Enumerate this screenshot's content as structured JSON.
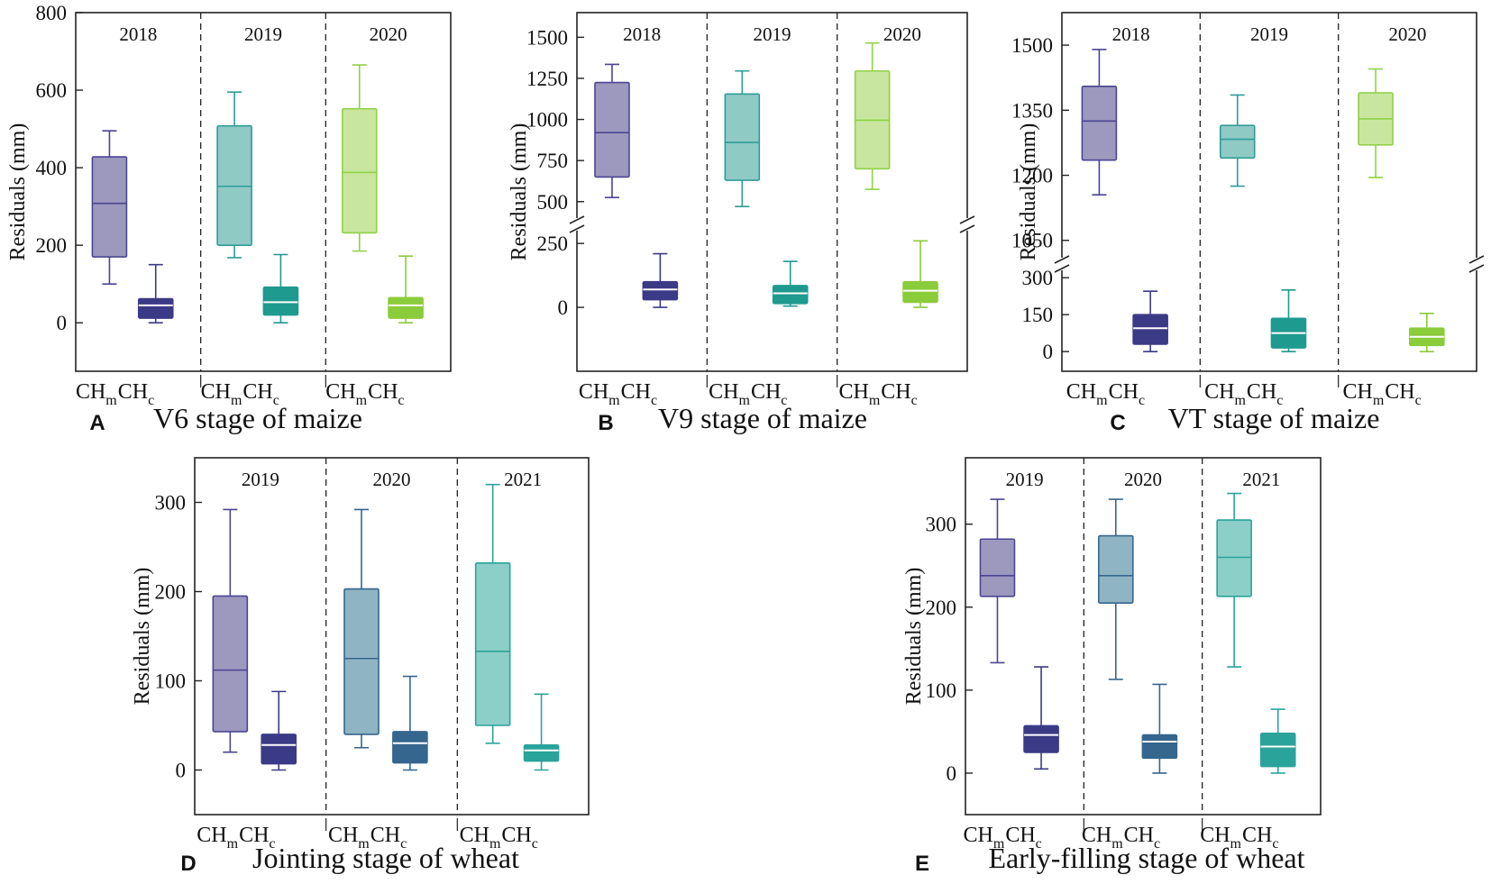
{
  "figure": {
    "ylabel": "Residuals (mm)",
    "label_m": "CH",
    "sub_m": "m",
    "label_c": "CH",
    "sub_c": "c"
  },
  "colors": {
    "purple": "#4a4593",
    "purple_fill": "#9c98be",
    "teal": "#2f9c97",
    "teal_fill": "#8fcac5",
    "green": "#8fd244",
    "green_fill": "#c8e6a0",
    "navy": "#3b3a86",
    "dteal": "#1e9a8f",
    "lgreen": "#8acc3a",
    "steel": "#35668d",
    "steel_fill": "#8fb4c3",
    "wteal": "#2aa39a",
    "wteal_fill": "#8ccfc8"
  },
  "chart_data": [
    {
      "type": "box",
      "panel": "A",
      "title": "V6 stage of maize",
      "ylabel": "Residuals (mm)",
      "ylim": [
        -125,
        800
      ],
      "yticks": [
        0,
        200,
        400,
        600,
        800
      ],
      "groups": [
        "2018",
        "2019",
        "2020"
      ],
      "boxes": [
        {
          "group": "2018",
          "series": "CHm",
          "min": 100,
          "q1": 170,
          "median": 308,
          "q3": 428,
          "max": 495,
          "color": "purple",
          "fill": "purple_fill"
        },
        {
          "group": "2018",
          "series": "CHc",
          "min": 0,
          "q1": 12,
          "median": 45,
          "q3": 62,
          "max": 150,
          "color": "navy",
          "fill": "navy"
        },
        {
          "group": "2019",
          "series": "CHm",
          "min": 168,
          "q1": 200,
          "median": 352,
          "q3": 508,
          "max": 595,
          "color": "teal",
          "fill": "teal_fill"
        },
        {
          "group": "2019",
          "series": "CHc",
          "min": 0,
          "q1": 20,
          "median": 53,
          "q3": 92,
          "max": 176,
          "color": "dteal",
          "fill": "dteal"
        },
        {
          "group": "2020",
          "series": "CHm",
          "min": 185,
          "q1": 232,
          "median": 388,
          "q3": 552,
          "max": 665,
          "color": "green",
          "fill": "green_fill"
        },
        {
          "group": "2020",
          "series": "CHc",
          "min": 0,
          "q1": 12,
          "median": 45,
          "q3": 65,
          "max": 172,
          "color": "lgreen",
          "fill": "lgreen"
        }
      ]
    },
    {
      "type": "box",
      "panel": "B",
      "title": "V9 stage of maize",
      "ylabel": "Residuals (mm)",
      "broken": true,
      "lower": {
        "range": [
          -250,
          300
        ],
        "ticks": [
          0,
          250
        ]
      },
      "upper": {
        "range": [
          400,
          1650
        ],
        "ticks": [
          500,
          750,
          1000,
          1250,
          1500
        ]
      },
      "groups": [
        "2018",
        "2019",
        "2020"
      ],
      "boxes": [
        {
          "group": "2018",
          "series": "CHm",
          "min": 525,
          "q1": 650,
          "median": 920,
          "q3": 1225,
          "max": 1335,
          "color": "purple",
          "fill": "purple_fill"
        },
        {
          "group": "2018",
          "series": "CHc",
          "min": 0,
          "q1": 30,
          "median": 70,
          "q3": 100,
          "max": 210,
          "color": "navy",
          "fill": "navy"
        },
        {
          "group": "2019",
          "series": "CHm",
          "min": 470,
          "q1": 630,
          "median": 860,
          "q3": 1155,
          "max": 1295,
          "color": "teal",
          "fill": "teal_fill"
        },
        {
          "group": "2019",
          "series": "CHc",
          "min": 5,
          "q1": 15,
          "median": 55,
          "q3": 85,
          "max": 180,
          "color": "dteal",
          "fill": "dteal"
        },
        {
          "group": "2020",
          "series": "CHm",
          "min": 575,
          "q1": 700,
          "median": 995,
          "q3": 1295,
          "max": 1465,
          "color": "green",
          "fill": "green_fill"
        },
        {
          "group": "2020",
          "series": "CHc",
          "min": 0,
          "q1": 20,
          "median": 65,
          "q3": 100,
          "max": 260,
          "color": "lgreen",
          "fill": "lgreen"
        }
      ]
    },
    {
      "type": "box",
      "panel": "C",
      "title": "VT stage of maize",
      "ylabel": "Residuals (mm)",
      "broken": true,
      "lower": {
        "range": [
          -80,
          330
        ],
        "ticks": [
          0,
          150,
          300
        ]
      },
      "upper": {
        "range": [
          1010,
          1575
        ],
        "ticks": [
          1050,
          1200,
          1350,
          1500
        ]
      },
      "groups": [
        "2018",
        "2019",
        "2020"
      ],
      "boxes": [
        {
          "group": "2018",
          "series": "CHm",
          "min": 1155,
          "q1": 1235,
          "median": 1325,
          "q3": 1405,
          "max": 1490,
          "color": "purple",
          "fill": "purple_fill"
        },
        {
          "group": "2018",
          "series": "CHc",
          "min": 0,
          "q1": 30,
          "median": 95,
          "q3": 150,
          "max": 245,
          "color": "navy",
          "fill": "navy"
        },
        {
          "group": "2019",
          "series": "CHm",
          "min": 1175,
          "q1": 1240,
          "median": 1283,
          "q3": 1315,
          "max": 1385,
          "color": "teal",
          "fill": "teal_fill"
        },
        {
          "group": "2019",
          "series": "CHc",
          "min": 0,
          "q1": 15,
          "median": 75,
          "q3": 135,
          "max": 250,
          "color": "dteal",
          "fill": "dteal"
        },
        {
          "group": "2020",
          "series": "CHm",
          "min": 1195,
          "q1": 1270,
          "median": 1330,
          "q3": 1390,
          "max": 1445,
          "color": "green",
          "fill": "green_fill"
        },
        {
          "group": "2020",
          "series": "CHc",
          "min": 0,
          "q1": 25,
          "median": 60,
          "q3": 95,
          "max": 155,
          "color": "lgreen",
          "fill": "lgreen"
        }
      ]
    },
    {
      "type": "box",
      "panel": "D",
      "title": "Jointing stage of wheat",
      "ylabel": "Residuals (mm)",
      "ylim": [
        -50,
        350
      ],
      "yticks": [
        0,
        100,
        200,
        300
      ],
      "groups": [
        "2019",
        "2020",
        "2021"
      ],
      "boxes": [
        {
          "group": "2019",
          "series": "CHm",
          "min": 20,
          "q1": 43,
          "median": 112,
          "q3": 195,
          "max": 292,
          "color": "purple",
          "fill": "purple_fill"
        },
        {
          "group": "2019",
          "series": "CHc",
          "min": 0,
          "q1": 7,
          "median": 28,
          "q3": 40,
          "max": 88,
          "color": "navy",
          "fill": "navy"
        },
        {
          "group": "2020",
          "series": "CHm",
          "min": 25,
          "q1": 40,
          "median": 125,
          "q3": 203,
          "max": 292,
          "color": "steel",
          "fill": "steel_fill"
        },
        {
          "group": "2020",
          "series": "CHc",
          "min": 0,
          "q1": 8,
          "median": 30,
          "q3": 43,
          "max": 105,
          "color": "steel",
          "fill": "steel"
        },
        {
          "group": "2021",
          "series": "CHm",
          "min": 30,
          "q1": 50,
          "median": 133,
          "q3": 232,
          "max": 320,
          "color": "wteal",
          "fill": "wteal_fill"
        },
        {
          "group": "2021",
          "series": "CHc",
          "min": 0,
          "q1": 10,
          "median": 22,
          "q3": 28,
          "max": 85,
          "color": "wteal",
          "fill": "wteal"
        }
      ]
    },
    {
      "type": "box",
      "panel": "E",
      "title": "Early-filling stage of wheat",
      "ylabel": "Residuals (mm)",
      "ylim": [
        -50,
        380
      ],
      "yticks": [
        0,
        100,
        200,
        300
      ],
      "groups": [
        "2019",
        "2020",
        "2021"
      ],
      "boxes": [
        {
          "group": "2019",
          "series": "CHm",
          "min": 133,
          "q1": 213,
          "median": 238,
          "q3": 282,
          "max": 330,
          "color": "purple",
          "fill": "purple_fill"
        },
        {
          "group": "2019",
          "series": "CHc",
          "min": 5,
          "q1": 25,
          "median": 46,
          "q3": 57,
          "max": 128,
          "color": "navy",
          "fill": "navy"
        },
        {
          "group": "2020",
          "series": "CHm",
          "min": 113,
          "q1": 205,
          "median": 238,
          "q3": 286,
          "max": 330,
          "color": "steel",
          "fill": "steel_fill"
        },
        {
          "group": "2020",
          "series": "CHc",
          "min": 0,
          "q1": 18,
          "median": 38,
          "q3": 46,
          "max": 107,
          "color": "steel",
          "fill": "steel"
        },
        {
          "group": "2021",
          "series": "CHm",
          "min": 128,
          "q1": 213,
          "median": 260,
          "q3": 305,
          "max": 337,
          "color": "wteal",
          "fill": "wteal_fill"
        },
        {
          "group": "2021",
          "series": "CHc",
          "min": 0,
          "q1": 8,
          "median": 32,
          "q3": 48,
          "max": 77,
          "color": "wteal",
          "fill": "wteal"
        }
      ]
    }
  ]
}
